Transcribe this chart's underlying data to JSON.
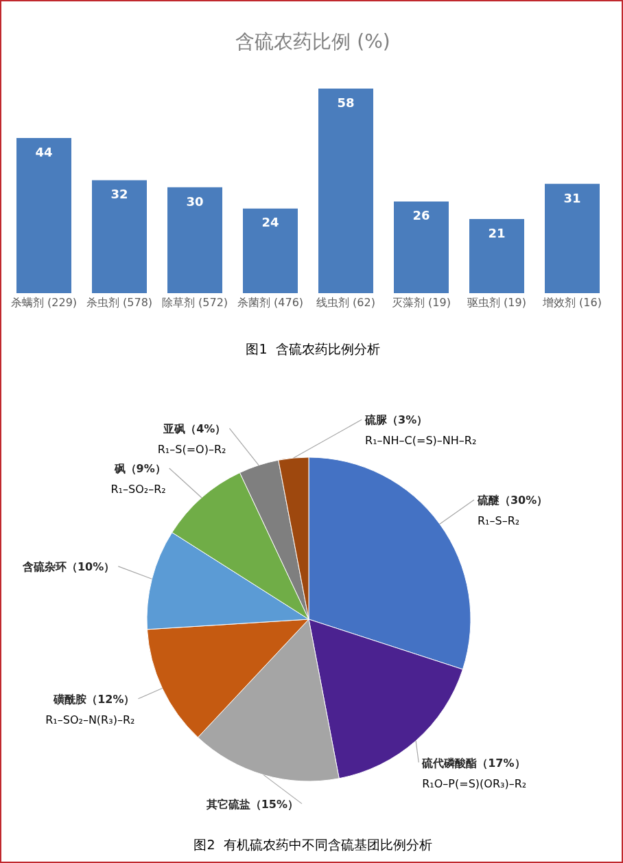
{
  "chart_data": [
    {
      "type": "bar",
      "title": "含硫农药比例 (%)",
      "categories": [
        "杀螨剂 (229)",
        "杀虫剂 (578)",
        "除草剂 (572)",
        "杀菌剂 (476)",
        "线虫剂 (62)",
        "灭藻剂 (19)",
        "驱虫剂 (19)",
        "增效剂 (16)"
      ],
      "values": [
        44,
        32,
        30,
        24,
        58,
        26,
        21,
        31
      ],
      "color": "#4a7dbd",
      "data_labels": true,
      "tick_labels": "x",
      "annotations": [
        "图1  含硫农药比例分析"
      ]
    },
    {
      "type": "pie",
      "categories": [
        "硫醚（30%）",
        "硫代磷酸酯（17%）",
        "其它硫盐（15%）",
        "磺酰胺（12%）",
        "含硫杂环（10%）",
        "砜（9%）",
        "亚砜（4%）",
        "硫脲（3%）"
      ],
      "values": [
        30,
        17,
        15,
        12,
        10,
        9,
        4,
        3
      ],
      "colors": [
        "#4472c4",
        "#4b2290",
        "#a5a5a5",
        "#c55a11",
        "#5b9bd5",
        "#70ad47",
        "#7f7f7f",
        "#9e480e"
      ],
      "annotations": [
        {
          "text": "R₁–S–R₂",
          "x": "硫醚（30%）"
        },
        {
          "text": "R₁O–P(=S)(OR₃)–R₂",
          "x": "硫代磷酸酯（17%）"
        },
        {
          "text": "R₁–SO₂–N(R₃)–R₂",
          "x": "磺酰胺（12%）"
        },
        {
          "text": "R₁–SO₂–R₂",
          "x": "砜（9%）"
        },
        {
          "text": "R₁–S(=O)–R₂",
          "x": "亚砜（4%）"
        },
        {
          "text": "R₁–NH–C(=S)–NH–R₂",
          "x": "硫脲（3%）"
        },
        "图2  有机硫农药中不同含硫基团比例分析"
      ]
    }
  ]
}
